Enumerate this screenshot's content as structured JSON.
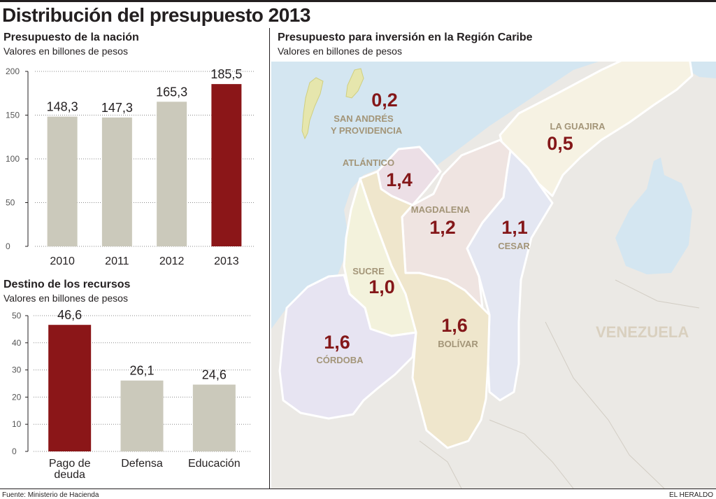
{
  "title": "Distribución del presupuesto 2013",
  "chart_data": [
    {
      "type": "bar",
      "title": "Presupuesto de la nación",
      "subtitle": "Valores en billones de pesos",
      "categories": [
        "2010",
        "2011",
        "2012",
        "2013"
      ],
      "values": [
        148.3,
        147.3,
        165.3,
        185.5
      ],
      "value_labels": [
        "148,3",
        "147,3",
        "165,3",
        "185,5"
      ],
      "highlight_index": 3,
      "ylim": [
        0,
        200
      ],
      "yticks": [
        0,
        50,
        100,
        150,
        200
      ],
      "xlabel": "",
      "ylabel": ""
    },
    {
      "type": "bar",
      "title": "Destino de los recursos",
      "subtitle": "Valores en billones de pesos",
      "categories": [
        "Pago de deuda",
        "Defensa",
        "Educación"
      ],
      "category_lines": [
        [
          "Pago de",
          "deuda"
        ],
        [
          "Defensa"
        ],
        [
          "Educación"
        ]
      ],
      "values": [
        46.6,
        26.1,
        24.6
      ],
      "value_labels": [
        "46,6",
        "26,1",
        "24,6"
      ],
      "highlight_index": 0,
      "ylim": [
        0,
        50
      ],
      "yticks": [
        0,
        10,
        20,
        30,
        40,
        50
      ],
      "xlabel": "",
      "ylabel": ""
    }
  ],
  "map": {
    "title": "Presupuesto para inversión en la Región Caribe",
    "subtitle": "Valores en billones de pesos",
    "country_label": "VENEZUELA",
    "regions": [
      {
        "id": "san-andres",
        "lines": [
          "SAN ANDRÉS",
          "Y PROVIDENCIA"
        ],
        "value": "0,2",
        "fill": "#e6e6ad"
      },
      {
        "id": "la-guajira",
        "lines": [
          "LA GUAJIRA"
        ],
        "value": "0,5",
        "fill": "#f6f2e3"
      },
      {
        "id": "atlantico",
        "lines": [
          "ATLÁNTICO"
        ],
        "value": "1,4",
        "fill": "#ecdfe6"
      },
      {
        "id": "magdalena",
        "lines": [
          "MAGDALENA"
        ],
        "value": "1,2",
        "fill": "#efe4e1"
      },
      {
        "id": "cesar",
        "lines": [
          "CESAR"
        ],
        "value": "1,1",
        "fill": "#e4e7f2"
      },
      {
        "id": "sucre",
        "lines": [
          "SUCRE"
        ],
        "value": "1,0",
        "fill": "#f3f2dc"
      },
      {
        "id": "bolivar",
        "lines": [
          "BOLÍVAR"
        ],
        "value": "1,6",
        "fill": "#efe6cc"
      },
      {
        "id": "cordoba",
        "lines": [
          "CÓRDOBA"
        ],
        "value": "1,6",
        "fill": "#e7e4f2"
      }
    ]
  },
  "colors": {
    "bar": "#cbc9bb",
    "highlight": "#8b1618",
    "value_text": "#841719",
    "water": "#d4e6f1",
    "land": "#ebe9e5"
  },
  "footer": {
    "source": "Fuente: Ministerio de Hacienda",
    "brand": "EL HERALDO"
  }
}
